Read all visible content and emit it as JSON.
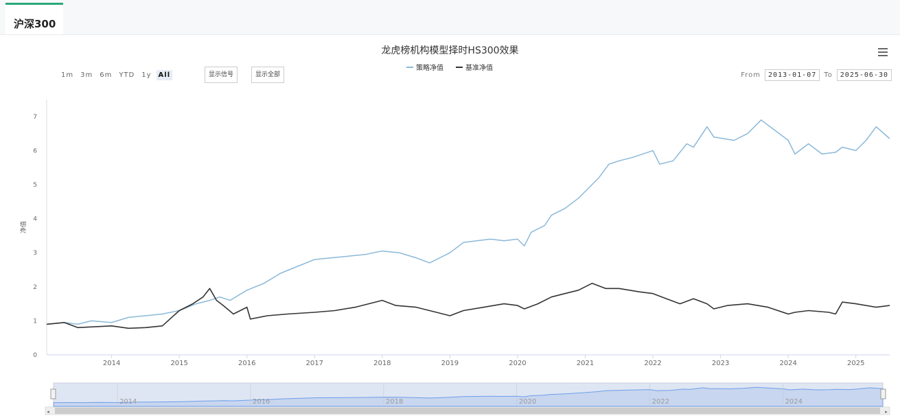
{
  "tab": {
    "label": "沪深300"
  },
  "toolbar": {
    "range_buttons": [
      "1m",
      "3m",
      "6m",
      "YTD",
      "1y",
      "All"
    ],
    "active_range": "All",
    "show_signals": "显示信号",
    "show_all": "显示全部",
    "from_label": "From",
    "from_value": "2013-01-07",
    "to_label": "To",
    "to_value": "2025-06-30"
  },
  "chart_data": {
    "type": "line",
    "title": "龙虎榜机构模型择时HS300效果",
    "xlabel": "",
    "ylabel": "净值",
    "ylim": [
      0,
      7.5
    ],
    "yticks": [
      0,
      1,
      2,
      3,
      4,
      5,
      6,
      7
    ],
    "xlim": [
      2013.04,
      2025.5
    ],
    "xticks": [
      2014,
      2015,
      2016,
      2017,
      2018,
      2019,
      2020,
      2021,
      2022,
      2023,
      2024,
      2025
    ],
    "legend": "top-center",
    "series": [
      {
        "name": "策略净值",
        "color": "#8ab8d8",
        "x": [
          2013.04,
          2013.3,
          2013.5,
          2013.7,
          2014.0,
          2014.25,
          2014.5,
          2014.75,
          2015.0,
          2015.25,
          2015.45,
          2015.6,
          2015.75,
          2016.0,
          2016.25,
          2016.5,
          2016.75,
          2017.0,
          2017.25,
          2017.5,
          2017.75,
          2018.0,
          2018.25,
          2018.5,
          2018.7,
          2019.0,
          2019.2,
          2019.4,
          2019.6,
          2019.8,
          2020.0,
          2020.1,
          2020.2,
          2020.4,
          2020.5,
          2020.7,
          2020.9,
          2021.0,
          2021.2,
          2021.35,
          2021.5,
          2021.7,
          2022.0,
          2022.1,
          2022.3,
          2022.5,
          2022.6,
          2022.8,
          2022.9,
          2023.2,
          2023.4,
          2023.6,
          2023.8,
          2024.0,
          2024.1,
          2024.3,
          2024.5,
          2024.7,
          2024.8,
          2025.0,
          2025.15,
          2025.3,
          2025.5
        ],
        "values": [
          0.9,
          0.95,
          0.9,
          1.0,
          0.95,
          1.1,
          1.15,
          1.2,
          1.3,
          1.5,
          1.6,
          1.7,
          1.6,
          1.9,
          2.1,
          2.4,
          2.6,
          2.8,
          2.85,
          2.9,
          2.95,
          3.05,
          3.0,
          2.85,
          2.7,
          3.0,
          3.3,
          3.35,
          3.4,
          3.35,
          3.4,
          3.2,
          3.6,
          3.8,
          4.1,
          4.3,
          4.6,
          4.8,
          5.2,
          5.6,
          5.7,
          5.8,
          6.0,
          5.6,
          5.7,
          6.2,
          6.1,
          6.7,
          6.4,
          6.3,
          6.5,
          6.9,
          6.6,
          6.3,
          5.9,
          6.2,
          5.9,
          5.95,
          6.1,
          6.0,
          6.3,
          6.7,
          6.35
        ]
      },
      {
        "name": "基准净值",
        "color": "#333333",
        "x": [
          2013.04,
          2013.3,
          2013.5,
          2013.7,
          2014.0,
          2014.25,
          2014.5,
          2014.75,
          2015.0,
          2015.2,
          2015.35,
          2015.45,
          2015.55,
          2015.65,
          2015.8,
          2016.0,
          2016.05,
          2016.3,
          2016.6,
          2017.0,
          2017.3,
          2017.6,
          2017.8,
          2018.0,
          2018.2,
          2018.5,
          2018.8,
          2019.0,
          2019.2,
          2019.5,
          2019.8,
          2020.0,
          2020.1,
          2020.3,
          2020.5,
          2020.7,
          2020.9,
          2021.1,
          2021.3,
          2021.5,
          2021.8,
          2022.0,
          2022.2,
          2022.4,
          2022.6,
          2022.8,
          2022.9,
          2023.1,
          2023.4,
          2023.7,
          2024.0,
          2024.1,
          2024.3,
          2024.6,
          2024.7,
          2024.8,
          2025.0,
          2025.3,
          2025.5
        ],
        "values": [
          0.9,
          0.95,
          0.8,
          0.82,
          0.85,
          0.78,
          0.8,
          0.85,
          1.3,
          1.5,
          1.7,
          1.95,
          1.6,
          1.45,
          1.2,
          1.4,
          1.05,
          1.15,
          1.2,
          1.25,
          1.3,
          1.4,
          1.5,
          1.6,
          1.45,
          1.4,
          1.25,
          1.15,
          1.3,
          1.4,
          1.5,
          1.45,
          1.35,
          1.5,
          1.7,
          1.8,
          1.9,
          2.1,
          1.95,
          1.95,
          1.85,
          1.8,
          1.65,
          1.5,
          1.65,
          1.5,
          1.35,
          1.45,
          1.5,
          1.4,
          1.2,
          1.25,
          1.3,
          1.25,
          1.2,
          1.55,
          1.5,
          1.4,
          1.45
        ]
      }
    ]
  },
  "navigator": {
    "xticks": [
      2014,
      2016,
      2018,
      2020,
      2022,
      2024
    ]
  }
}
